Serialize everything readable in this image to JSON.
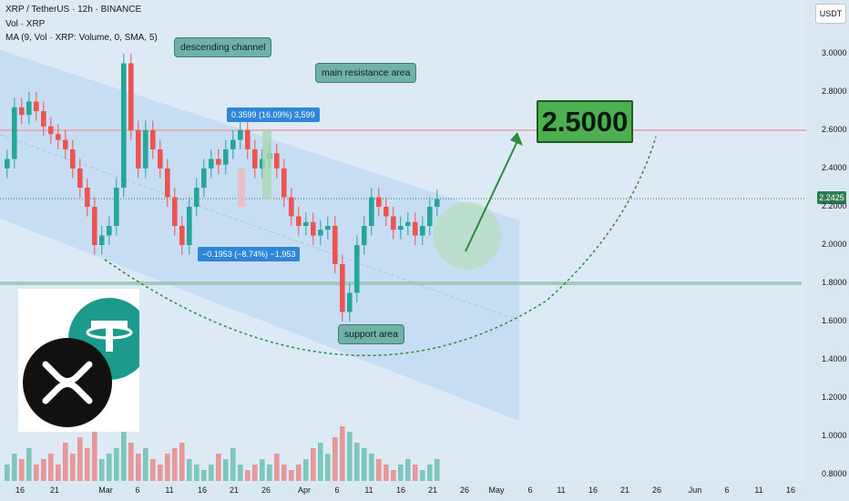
{
  "header": {
    "symbol_line": "XRP / TetherUS · 12h · BINANCE",
    "vol_line": "Vol · XRP",
    "ma_line": "MA (9, Vol · XRP: Volume, 0, SMA, 5)"
  },
  "currency_label": "USDT",
  "annotations": {
    "descending_channel": "descending channel",
    "main_resistance": "main resistance area",
    "support_area": "support area",
    "measure_up": "0.3599 (16.09%) 3,599",
    "measure_down": "−0.1953 (−8.74%) −1,953",
    "target": "2.5000"
  },
  "current_price_tag": "2.2425",
  "colors": {
    "up": "#26a69a",
    "down": "#ef5350",
    "channel": "#b3d4f0",
    "target": "#4caf50",
    "arrow": "#2e8b3e",
    "resistance_line": "#e8a0a8",
    "support_zone": "#9cc7b6"
  },
  "icons": [
    "xrp-logo-icon",
    "tether-logo-icon",
    "flash-icon",
    "signal-arrow-icon"
  ],
  "chart_data": {
    "type": "candlestick",
    "y_axis_label": "USDT",
    "ylim": [
      0.78,
      3.1
    ],
    "y_ticks": [
      "3.0000",
      "2.8000",
      "2.6000",
      "2.4000",
      "2.2000",
      "2.0000",
      "1.8000",
      "1.6000",
      "1.4000",
      "1.2000",
      "1.0000",
      "0.8000"
    ],
    "x_ticks": [
      "16",
      "21",
      "Mar",
      "6",
      "11",
      "16",
      "21",
      "26",
      "Apr",
      "6",
      "11",
      "16",
      "21",
      "26",
      "May",
      "6",
      "11",
      "16",
      "21",
      "26",
      "Jun",
      "6",
      "11",
      "16"
    ],
    "closes": [
      2.45,
      2.72,
      2.68,
      2.75,
      2.7,
      2.62,
      2.58,
      2.55,
      2.5,
      2.4,
      2.3,
      2.2,
      2.0,
      2.05,
      2.1,
      2.3,
      2.95,
      2.6,
      2.4,
      2.6,
      2.5,
      2.4,
      2.25,
      2.1,
      2.0,
      2.2,
      2.3,
      2.4,
      2.45,
      2.42,
      2.5,
      2.55,
      2.6,
      2.5,
      2.4,
      2.45,
      2.48,
      2.4,
      2.25,
      2.15,
      2.1,
      2.12,
      2.05,
      2.08,
      2.1,
      1.9,
      1.65,
      1.75,
      2.0,
      2.1,
      2.25,
      2.2,
      2.15,
      2.08,
      2.1,
      2.12,
      2.05,
      2.1,
      2.2,
      2.24
    ],
    "resistance": 2.6,
    "support": 1.8,
    "current_price": 2.2425,
    "target_price": 2.5,
    "volume": [
      0.3,
      0.5,
      0.4,
      0.6,
      0.3,
      0.4,
      0.5,
      0.3,
      0.7,
      0.5,
      0.8,
      0.6,
      0.9,
      0.4,
      0.5,
      0.6,
      1.0,
      0.7,
      0.5,
      0.6,
      0.4,
      0.3,
      0.5,
      0.6,
      0.7,
      0.4,
      0.3,
      0.2,
      0.3,
      0.5,
      0.4,
      0.6,
      0.3,
      0.2,
      0.3,
      0.4,
      0.3,
      0.5,
      0.3,
      0.2,
      0.3,
      0.4,
      0.6,
      0.7,
      0.5,
      0.8,
      1.0,
      0.9,
      0.7,
      0.6,
      0.5,
      0.4,
      0.3,
      0.2,
      0.3,
      0.4,
      0.3,
      0.2,
      0.3,
      0.4
    ]
  }
}
